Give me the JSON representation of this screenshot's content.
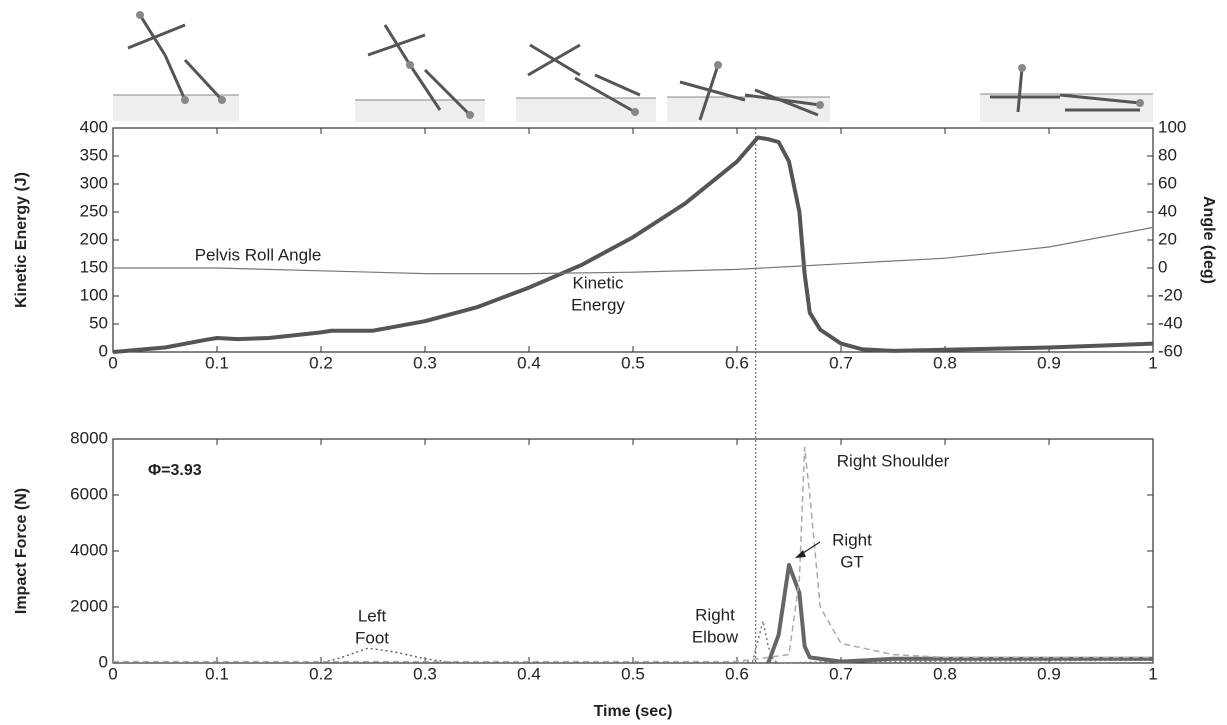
{
  "chart_data": [
    {
      "type": "line",
      "ylabel": "Kinetic Energy (J)",
      "y2label": "Angle (deg)",
      "xlim": [
        0,
        1
      ],
      "xticks": [
        0,
        0.1,
        0.2,
        0.3,
        0.4,
        0.5,
        0.6,
        0.7,
        0.8,
        0.9,
        1
      ],
      "ylim": [
        0,
        400
      ],
      "yticks": [
        0,
        50,
        100,
        150,
        200,
        250,
        300,
        350,
        400
      ],
      "y2lim": [
        -60,
        100
      ],
      "y2ticks": [
        -60,
        -40,
        -20,
        0,
        20,
        40,
        60,
        80,
        100
      ],
      "vline": 0.618,
      "series": [
        {
          "label": [
            "Kinetic",
            "Energy"
          ],
          "color": "#555555",
          "width": 4,
          "dash": "none",
          "x": [
            0,
            0.05,
            0.09,
            0.1,
            0.12,
            0.15,
            0.2,
            0.21,
            0.25,
            0.3,
            0.35,
            0.4,
            0.45,
            0.5,
            0.55,
            0.6,
            0.62,
            0.63,
            0.64,
            0.65,
            0.66,
            0.665,
            0.67,
            0.68,
            0.7,
            0.72,
            0.75,
            0.8,
            0.9,
            1
          ],
          "values": [
            0,
            8,
            22,
            25,
            23,
            25,
            35,
            38,
            38,
            55,
            80,
            115,
            155,
            205,
            265,
            340,
            383,
            380,
            375,
            340,
            250,
            140,
            70,
            40,
            15,
            5,
            2,
            4,
            8,
            15
          ]
        },
        {
          "label": [
            "Pelvis Roll Angle"
          ],
          "axis": "y2",
          "color": "#777777",
          "width": 1.2,
          "dash": "none",
          "x": [
            0,
            0.1,
            0.2,
            0.3,
            0.4,
            0.5,
            0.6,
            0.65,
            0.7,
            0.8,
            0.9,
            1
          ],
          "values": [
            0,
            0,
            -2,
            -4,
            -4,
            -3,
            -1,
            1,
            3,
            7,
            15,
            29
          ]
        }
      ]
    },
    {
      "type": "line",
      "ylabel": "Impact Force (N)",
      "xlabel": "Time (sec)",
      "annotation": "Φ=3.93",
      "xlim": [
        0,
        1
      ],
      "xticks": [
        0,
        0.1,
        0.2,
        0.3,
        0.4,
        0.5,
        0.6,
        0.7,
        0.8,
        0.9,
        1
      ],
      "ylim": [
        0,
        8000
      ],
      "yticks": [
        0,
        2000,
        4000,
        6000,
        8000
      ],
      "series": [
        {
          "label": [
            "Left",
            "Foot"
          ],
          "color": "#666666",
          "width": 1.5,
          "dash": "2,3",
          "x": [
            0,
            0.2,
            0.22,
            0.245,
            0.27,
            0.3,
            0.33,
            0.6
          ],
          "values": [
            0,
            0,
            200,
            530,
            400,
            150,
            0,
            0
          ]
        },
        {
          "label": [
            "Right",
            "Elbow"
          ],
          "color": "#777777",
          "width": 1.5,
          "dash": "2,3",
          "x": [
            0.6,
            0.615,
            0.625,
            0.63,
            0.635,
            0.64,
            0.7,
            1
          ],
          "values": [
            0,
            50,
            1500,
            600,
            100,
            0,
            50,
            100
          ]
        },
        {
          "label": [
            "Right",
            "GT"
          ],
          "color": "#666666",
          "width": 4,
          "dash": "none",
          "x": [
            0.63,
            0.64,
            0.65,
            0.66,
            0.665,
            0.67,
            0.7,
            0.75,
            1
          ],
          "values": [
            0,
            1000,
            3500,
            2500,
            600,
            200,
            50,
            150,
            150
          ]
        },
        {
          "label": [
            "Right Shoulder"
          ],
          "color": "#aaaaaa",
          "width": 1.5,
          "dash": "6,4",
          "x": [
            0,
            0.6,
            0.65,
            0.66,
            0.665,
            0.67,
            0.68,
            0.7,
            0.75,
            0.8,
            1
          ],
          "values": [
            50,
            50,
            300,
            3000,
            7700,
            6000,
            2000,
            700,
            300,
            200,
            200
          ]
        }
      ]
    }
  ]
}
